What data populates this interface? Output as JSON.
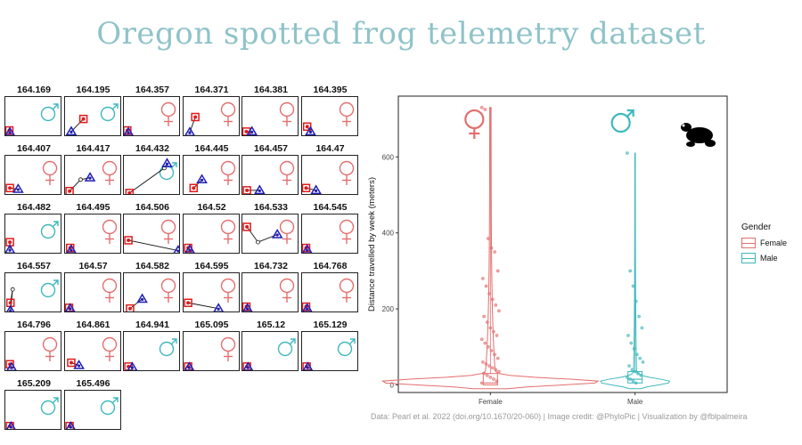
{
  "title": "Oregon spotted frog telemetry dataset",
  "caption": "Data: Pearl et al. 2022 (doi.org/10.1670/20-060) | Image credit: @PhyloPic | Visualization by @fblpalmeira",
  "colors": {
    "female": "#e46e6e",
    "male": "#3fb8bd",
    "title": "#8fc3c9",
    "triangle": "#1f1fb4",
    "square": "#e01b1b"
  },
  "panels": [
    {
      "label": "164.169",
      "sex": "male",
      "pts": [
        [
          0.04,
          0.85
        ],
        [
          0.05,
          0.9
        ]
      ]
    },
    {
      "label": "164.195",
      "sex": "male",
      "pts": [
        [
          0.3,
          0.55
        ],
        [
          0.08,
          0.88
        ]
      ]
    },
    {
      "label": "164.357",
      "sex": "female",
      "pts": [
        [
          0.03,
          0.85
        ],
        [
          0.05,
          0.9
        ]
      ]
    },
    {
      "label": "164.371",
      "sex": "female",
      "pts": [
        [
          0.18,
          0.5
        ],
        [
          0.08,
          0.9
        ]
      ]
    },
    {
      "label": "164.381",
      "sex": "female",
      "pts": [
        [
          0.04,
          0.88
        ],
        [
          0.14,
          0.88
        ]
      ]
    },
    {
      "label": "164.395",
      "sex": "female",
      "pts": [
        [
          0.06,
          0.75
        ],
        [
          0.12,
          0.88
        ]
      ]
    },
    {
      "label": "164.407",
      "sex": "female",
      "pts": [
        [
          0.05,
          0.82
        ],
        [
          0.2,
          0.85
        ]
      ]
    },
    {
      "label": "164.417",
      "sex": "female",
      "pts": [
        [
          0.05,
          0.9
        ],
        [
          0.25,
          0.6
        ],
        [
          0.42,
          0.55
        ]
      ]
    },
    {
      "label": "164.432",
      "sex": "male",
      "pts": [
        [
          0.07,
          0.95
        ],
        [
          0.7,
          0.3
        ],
        [
          0.75,
          0.18
        ]
      ]
    },
    {
      "label": "164.445",
      "sex": "female",
      "pts": [
        [
          0.15,
          0.82
        ],
        [
          0.3,
          0.6
        ]
      ]
    },
    {
      "label": "164.457",
      "sex": "female",
      "pts": [
        [
          0.05,
          0.88
        ],
        [
          0.28,
          0.88
        ]
      ]
    },
    {
      "label": "164.47",
      "sex": "female",
      "pts": [
        [
          0.04,
          0.82
        ],
        [
          0.22,
          0.88
        ]
      ]
    },
    {
      "label": "164.482",
      "sex": "male",
      "pts": [
        [
          0.05,
          0.7
        ],
        [
          0.05,
          0.9
        ]
      ]
    },
    {
      "label": "164.495",
      "sex": "female",
      "pts": [
        [
          0.06,
          0.85
        ],
        [
          0.08,
          0.9
        ]
      ]
    },
    {
      "label": "164.506",
      "sex": "female",
      "pts": [
        [
          0.05,
          0.65
        ],
        [
          0.95,
          0.92
        ]
      ]
    },
    {
      "label": "164.52",
      "sex": "female",
      "pts": [
        [
          0.05,
          0.85
        ],
        [
          0.08,
          0.9
        ]
      ]
    },
    {
      "label": "164.533",
      "sex": "female",
      "pts": [
        [
          0.05,
          0.3
        ],
        [
          0.25,
          0.7
        ],
        [
          0.6,
          0.5
        ]
      ]
    },
    {
      "label": "164.545",
      "sex": "female",
      "pts": [
        [
          0.04,
          0.85
        ],
        [
          0.06,
          0.9
        ]
      ]
    },
    {
      "label": "164.557",
      "sex": "male",
      "pts": [
        [
          0.06,
          0.75
        ],
        [
          0.1,
          0.4
        ],
        [
          0.06,
          0.95
        ]
      ]
    },
    {
      "label": "164.57",
      "sex": "female",
      "pts": [
        [
          0.04,
          0.88
        ],
        [
          0.06,
          0.9
        ]
      ]
    },
    {
      "label": "164.582",
      "sex": "female",
      "pts": [
        [
          0.08,
          0.9
        ],
        [
          0.3,
          0.65
        ]
      ]
    },
    {
      "label": "164.595",
      "sex": "female",
      "pts": [
        [
          0.05,
          0.75
        ],
        [
          0.6,
          0.9
        ]
      ]
    },
    {
      "label": "164.732",
      "sex": "female",
      "pts": [
        [
          0.04,
          0.85
        ],
        [
          0.06,
          0.9
        ]
      ]
    },
    {
      "label": "164.768",
      "sex": "female",
      "pts": [
        [
          0.04,
          0.85
        ],
        [
          0.06,
          0.9
        ]
      ]
    },
    {
      "label": "164.796",
      "sex": "female",
      "pts": [
        [
          0.05,
          0.82
        ],
        [
          0.08,
          0.9
        ]
      ]
    },
    {
      "label": "164.861",
      "sex": "female",
      "pts": [
        [
          0.08,
          0.78
        ],
        [
          0.22,
          0.85
        ]
      ]
    },
    {
      "label": "164.941",
      "sex": "male",
      "pts": [
        [
          0.05,
          0.88
        ],
        [
          0.12,
          0.9
        ]
      ]
    },
    {
      "label": "165.095",
      "sex": "female",
      "pts": [
        [
          0.05,
          0.88
        ],
        [
          0.07,
          0.9
        ]
      ]
    },
    {
      "label": "165.12",
      "sex": "male",
      "pts": [
        [
          0.05,
          0.88
        ],
        [
          0.07,
          0.9
        ]
      ]
    },
    {
      "label": "165.129",
      "sex": "male",
      "pts": [
        [
          0.05,
          0.88
        ],
        [
          0.07,
          0.9
        ]
      ]
    },
    {
      "label": "165.209",
      "sex": "male",
      "pts": [
        [
          0.05,
          0.9
        ],
        [
          0.07,
          0.92
        ]
      ]
    },
    {
      "label": "165.496",
      "sex": "male",
      "pts": [
        [
          0.05,
          0.9
        ],
        [
          0.07,
          0.92
        ]
      ]
    }
  ],
  "chart_data": {
    "type": "violin",
    "ylabel": "Distance travelled by week (meters)",
    "xlabel": "",
    "categories": [
      "Female",
      "Male"
    ],
    "ylim": [
      -20,
      760
    ],
    "yticks": [
      0,
      200,
      400,
      600
    ],
    "legend_title": "Gender",
    "legend_position": "right",
    "series": [
      {
        "name": "Female",
        "max": 730,
        "q1": 0,
        "median": 5,
        "q3": 30,
        "outliers": [
          730,
          725,
          385,
          360,
          350,
          300,
          280,
          260,
          240,
          225,
          210,
          195,
          180,
          165,
          150,
          140,
          130,
          120,
          110,
          100,
          90,
          80,
          70,
          60,
          55,
          50,
          45,
          40,
          35,
          30,
          25,
          20,
          15,
          10,
          5
        ]
      },
      {
        "name": "Male",
        "max": 610,
        "q1": 5,
        "median": 15,
        "q3": 35,
        "outliers": [
          610,
          300,
          260,
          220,
          180,
          150,
          130,
          110,
          95,
          80,
          70,
          60,
          50,
          40,
          35,
          30,
          25,
          20,
          15,
          10,
          5
        ]
      }
    ]
  }
}
